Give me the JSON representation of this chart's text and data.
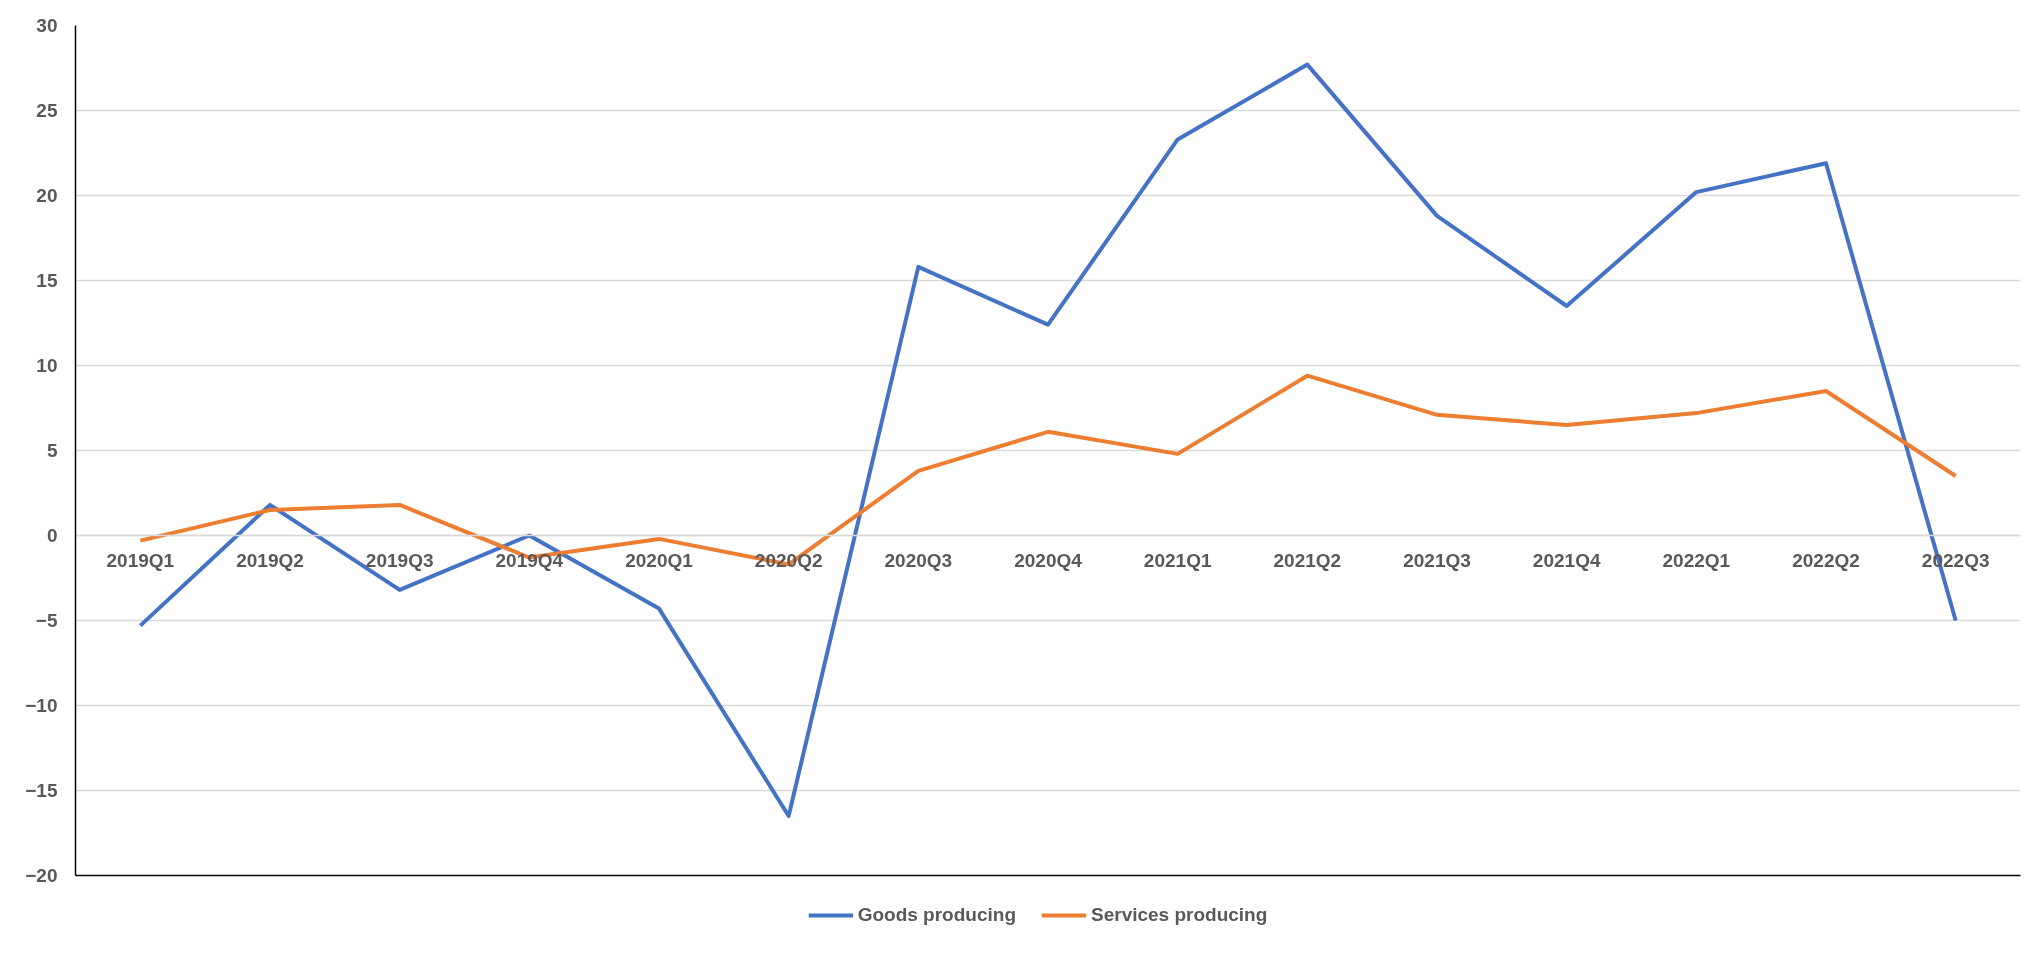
{
  "chart_data": {
    "type": "line",
    "categories": [
      "2019Q1",
      "2019Q2",
      "2019Q3",
      "2019Q4",
      "2020Q1",
      "2020Q2",
      "2020Q3",
      "2020Q4",
      "2021Q1",
      "2021Q2",
      "2021Q3",
      "2021Q4",
      "2022Q1",
      "2022Q2",
      "2022Q3"
    ],
    "series": [
      {
        "name": "Goods producing",
        "color": "#4472c4",
        "values": [
          -5.3,
          1.8,
          -3.2,
          0.0,
          -4.3,
          -16.5,
          15.8,
          12.4,
          23.3,
          27.7,
          18.8,
          13.5,
          20.2,
          21.9,
          -5.0
        ]
      },
      {
        "name": "Services producing",
        "color": "#ed7d31",
        "values": [
          -0.3,
          1.5,
          1.8,
          -1.3,
          -0.2,
          -1.7,
          3.8,
          6.1,
          4.8,
          9.4,
          7.1,
          6.5,
          7.2,
          8.5,
          3.5
        ]
      }
    ],
    "ylim": [
      -20,
      30
    ],
    "yticks": [
      -20,
      -15,
      -10,
      -5,
      0,
      5,
      10,
      15,
      20,
      25,
      30
    ],
    "grid": "y",
    "legend": "bottom",
    "marker": "none",
    "line_style": "solid"
  }
}
